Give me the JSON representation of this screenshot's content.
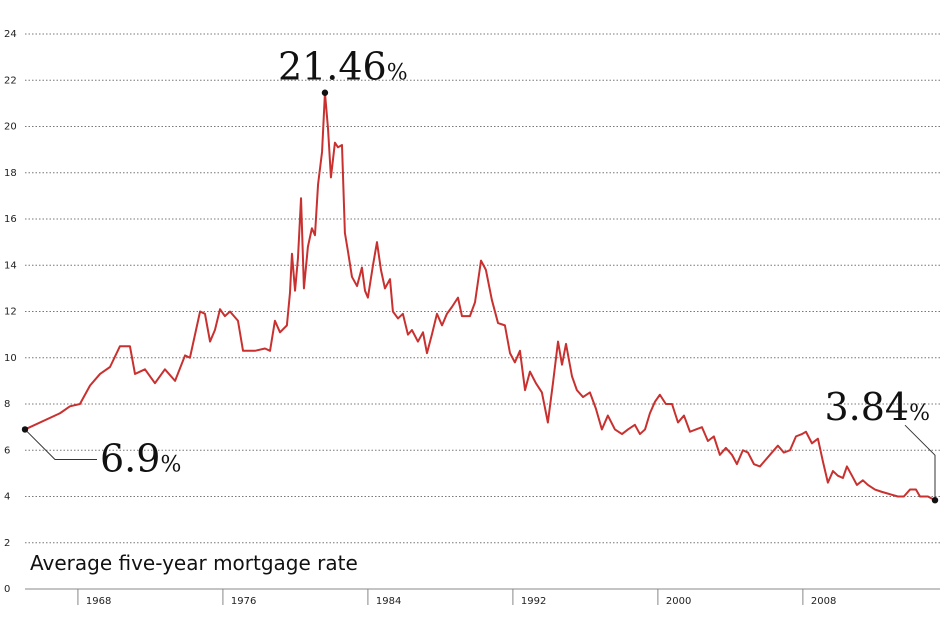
{
  "chart_data": {
    "type": "line",
    "title": "Average five-year mortgage rate",
    "xlim": [
      1965.08,
      2015.29
    ],
    "ylim": [
      0,
      24
    ],
    "xticks": [
      1968,
      1976,
      1984,
      1992,
      2000,
      2008
    ],
    "yticks": [
      0,
      2,
      4,
      6,
      8,
      10,
      12,
      14,
      16,
      18,
      20,
      22,
      24
    ],
    "grid": true,
    "annotations": [
      {
        "text": "21.46",
        "unit": "%"
      },
      {
        "text": "6.9",
        "unit": "%"
      },
      {
        "text": "3.84",
        "unit": "%"
      }
    ],
    "x": [
      1965.08,
      1967.01,
      1967.56,
      1968.11,
      1968.67,
      1969.22,
      1969.77,
      1970.32,
      1970.87,
      1971.15,
      1971.7,
      1972.25,
      1972.8,
      1973.36,
      1973.91,
      1974.18,
      1974.74,
      1975.01,
      1975.29,
      1975.56,
      1975.84,
      1976.11,
      1976.39,
      1976.83,
      1977.11,
      1977.77,
      1978.32,
      1978.6,
      1978.87,
      1979.15,
      1979.53,
      1979.7,
      1979.81,
      1979.98,
      1980.14,
      1980.31,
      1980.47,
      1980.69,
      1980.91,
      1981.08,
      1981.25,
      1981.47,
      1981.63,
      1981.8,
      1981.96,
      1982.18,
      1982.35,
      1982.57,
      1982.73,
      1982.9,
      1983.12,
      1983.4,
      1983.67,
      1983.84,
      1984.0,
      1984.28,
      1984.5,
      1984.72,
      1984.94,
      1985.22,
      1985.38,
      1985.66,
      1985.93,
      1986.21,
      1986.43,
      1986.76,
      1987.04,
      1987.26,
      1987.53,
      1987.81,
      1988.09,
      1988.36,
      1988.64,
      1988.97,
      1989.19,
      1989.63,
      1989.91,
      1990.24,
      1990.51,
      1990.84,
      1991.18,
      1991.56,
      1991.84,
      1992.11,
      1992.39,
      1992.67,
      1992.94,
      1993.27,
      1993.6,
      1993.93,
      1994.21,
      1994.49,
      1994.71,
      1994.93,
      1995.26,
      1995.53,
      1995.87,
      1996.25,
      1996.58,
      1996.91,
      1997.24,
      1997.63,
      1998.02,
      1998.35,
      1998.73,
      1999.01,
      1999.29,
      1999.56,
      1999.84,
      2000.11,
      2000.44,
      2000.78,
      2001.11,
      2001.44,
      2001.77,
      2002.1,
      2002.43,
      2002.76,
      2003.09,
      2003.42,
      2003.75,
      2004.09,
      2004.36,
      2004.69,
      2004.97,
      2005.3,
      2005.63,
      2005.96,
      2006.29,
      2006.62,
      2006.95,
      2007.29,
      2007.62,
      2007.95,
      2008.17,
      2008.5,
      2008.83,
      2009.11,
      2009.38,
      2009.66,
      2009.93,
      2010.21,
      2010.43,
      2010.71,
      2010.98,
      2011.31,
      2011.59,
      2011.98,
      2012.36,
      2012.8,
      2013.24,
      2013.57,
      2013.91,
      2014.24,
      2014.46,
      2014.9,
      2015.29
    ],
    "series": [
      {
        "color": "#c8312f",
        "values": [
          6.9,
          7.6,
          7.9,
          8.0,
          8.8,
          9.3,
          9.6,
          10.5,
          10.5,
          9.3,
          9.5,
          8.9,
          9.5,
          9.0,
          10.1,
          10.0,
          12.0,
          11.9,
          10.7,
          11.2,
          12.1,
          11.8,
          12.0,
          11.6,
          10.3,
          10.3,
          10.4,
          10.3,
          11.6,
          11.1,
          11.4,
          12.8,
          14.5,
          12.9,
          14.3,
          16.9,
          13.0,
          14.8,
          15.6,
          15.3,
          17.5,
          18.9,
          21.46,
          19.9,
          17.8,
          19.3,
          19.1,
          19.2,
          15.4,
          14.6,
          13.5,
          13.1,
          13.9,
          12.9,
          12.6,
          14.0,
          15.0,
          13.8,
          13.0,
          13.4,
          12.0,
          11.7,
          11.9,
          11.0,
          11.2,
          10.7,
          11.1,
          10.2,
          11.0,
          11.9,
          11.4,
          11.9,
          12.2,
          12.6,
          11.8,
          11.8,
          12.4,
          14.2,
          13.8,
          12.5,
          11.5,
          11.4,
          10.2,
          9.8,
          10.3,
          8.6,
          9.4,
          8.9,
          8.5,
          7.2,
          8.9,
          10.7,
          9.7,
          10.6,
          9.2,
          8.6,
          8.3,
          8.5,
          7.8,
          6.9,
          7.5,
          6.9,
          6.7,
          6.9,
          7.1,
          6.7,
          6.9,
          7.6,
          8.1,
          8.4,
          8.0,
          8.0,
          7.2,
          7.5,
          6.8,
          6.9,
          7.0,
          6.4,
          6.6,
          5.8,
          6.1,
          5.8,
          5.4,
          6.0,
          5.9,
          5.4,
          5.3,
          5.6,
          5.9,
          6.2,
          5.9,
          6.0,
          6.6,
          6.7,
          6.8,
          6.3,
          6.5,
          5.5,
          4.6,
          5.1,
          4.9,
          4.8,
          5.3,
          4.9,
          4.5,
          4.7,
          4.5,
          4.3,
          4.2,
          4.1,
          4.0,
          4.0,
          4.3,
          4.3,
          4.0,
          4.0,
          3.84
        ]
      }
    ]
  }
}
